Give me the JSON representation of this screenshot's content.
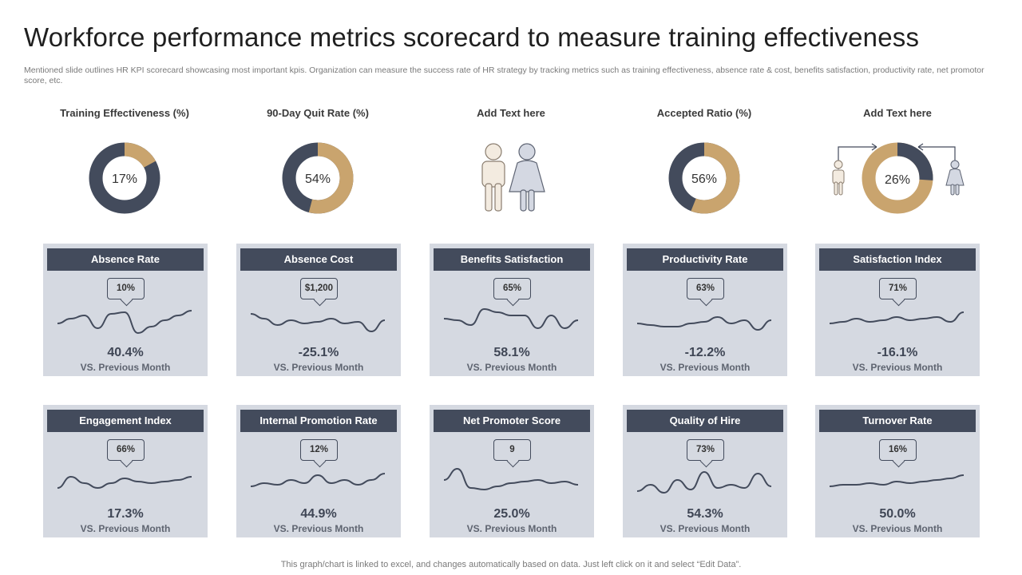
{
  "title": "Workforce performance metrics scorecard to measure training effectiveness",
  "subtitle": "Mentioned slide outlines HR KPI scorecard showcasing most important kpis. Organization can measure the success rate of HR strategy by tracking metrics such as training effectiveness, absence rate & cost, benefits satisfaction, productivity rate, net promotor score, etc.",
  "colors": {
    "dark": "#434b5c",
    "gold": "#c9a46e",
    "panel": "#d5d9e1"
  },
  "top": [
    {
      "label": "Training Effectiveness (%)",
      "type": "donut",
      "percent": 17,
      "display": "17%"
    },
    {
      "label": "90-Day Quit Rate (%)",
      "type": "donut",
      "percent": 54,
      "display": "54%"
    },
    {
      "label": "Add Text here",
      "type": "people"
    },
    {
      "label": "Accepted Ratio (%)",
      "type": "donut",
      "percent": 56,
      "display": "56%"
    },
    {
      "label": "Add Text here",
      "type": "donut-people",
      "percent": 26,
      "display": "26%"
    }
  ],
  "cards": [
    {
      "name": "Absence Rate",
      "bubble": "10%",
      "value": "40.4%",
      "vs": "VS. Previous Month",
      "spark": [
        0.45,
        0.6,
        0.7,
        0.3,
        0.75,
        0.8,
        0.15,
        0.35,
        0.55,
        0.7,
        0.85
      ]
    },
    {
      "name": "Absence Cost",
      "bubble": "$1,200",
      "value": "-25.1%",
      "vs": "VS. Previous Month",
      "spark": [
        0.75,
        0.6,
        0.4,
        0.55,
        0.45,
        0.5,
        0.6,
        0.45,
        0.5,
        0.2,
        0.55
      ]
    },
    {
      "name": "Benefits Satisfaction",
      "bubble": "65%",
      "value": "58.1%",
      "vs": "VS. Previous Month",
      "spark": [
        0.6,
        0.55,
        0.4,
        0.9,
        0.8,
        0.7,
        0.7,
        0.3,
        0.7,
        0.3,
        0.55
      ]
    },
    {
      "name": "Productivity Rate",
      "bubble": "63%",
      "value": "-12.2%",
      "vs": "VS. Previous Month",
      "spark": [
        0.45,
        0.4,
        0.35,
        0.35,
        0.45,
        0.5,
        0.65,
        0.45,
        0.55,
        0.25,
        0.55
      ]
    },
    {
      "name": "Satisfaction Index",
      "bubble": "71%",
      "value": "-16.1%",
      "vs": "VS. Previous Month",
      "spark": [
        0.45,
        0.5,
        0.6,
        0.5,
        0.55,
        0.65,
        0.55,
        0.6,
        0.65,
        0.5,
        0.8
      ]
    },
    {
      "name": "Engagement Index",
      "bubble": "66%",
      "value": "17.3%",
      "vs": "VS. Previous Month",
      "spark": [
        0.35,
        0.7,
        0.5,
        0.35,
        0.5,
        0.65,
        0.55,
        0.5,
        0.55,
        0.6,
        0.7
      ]
    },
    {
      "name": "Internal Promotion Rate",
      "bubble": "12%",
      "value": "44.9%",
      "vs": "VS. Previous Month",
      "spark": [
        0.4,
        0.5,
        0.45,
        0.6,
        0.5,
        0.75,
        0.5,
        0.6,
        0.45,
        0.6,
        0.8
      ]
    },
    {
      "name": "Net Promoter Score",
      "bubble": "9",
      "value": "25.0%",
      "vs": "VS. Previous Month",
      "spark": [
        0.6,
        0.95,
        0.35,
        0.3,
        0.4,
        0.5,
        0.55,
        0.6,
        0.5,
        0.55,
        0.45
      ]
    },
    {
      "name": "Quality of Hire",
      "bubble": "73%",
      "value": "54.3%",
      "vs": "VS. Previous Month",
      "spark": [
        0.25,
        0.45,
        0.2,
        0.6,
        0.3,
        0.85,
        0.35,
        0.45,
        0.35,
        0.8,
        0.4
      ]
    },
    {
      "name": "Turnover Rate",
      "bubble": "16%",
      "value": "50.0%",
      "vs": "VS. Previous Month",
      "spark": [
        0.4,
        0.45,
        0.45,
        0.5,
        0.45,
        0.55,
        0.5,
        0.55,
        0.6,
        0.65,
        0.75
      ]
    }
  ],
  "footer": "This graph/chart is linked to excel,  and changes automatically based on data. Just left click on it and select “Edit Data”."
}
